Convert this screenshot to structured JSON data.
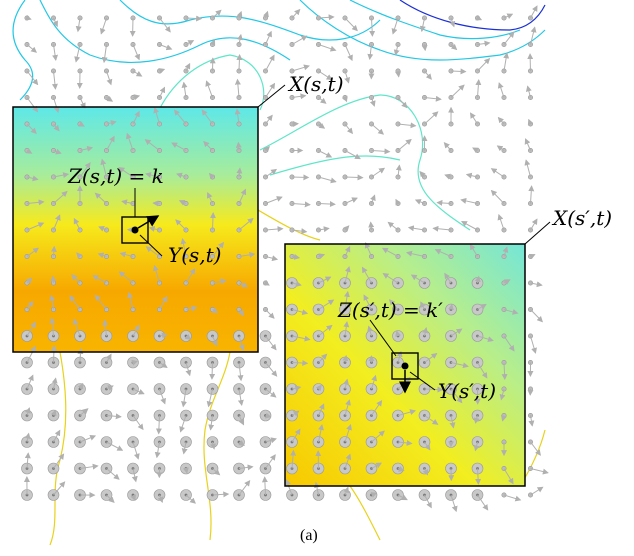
{
  "labels": {
    "x_st": "X(s,t)",
    "z_st": "Z(s,t) = k",
    "y_st": "Y(s,t)",
    "x_spt": "X(s′,t)",
    "z_spt": "Z(s′,t) = k′",
    "y_spt": "Y(s′,t)"
  },
  "caption": "(a)",
  "colors": {
    "contour_blue": "#1a2fd6",
    "contour_cyan": "#22c8e6",
    "contour_teal": "#5fe6c8",
    "contour_yellow": "#e8d21a",
    "arrow_gray": "#b0b0b0",
    "field_cyan": "#5ee8e8",
    "field_green": "#a8ec9a",
    "field_yellow": "#f6ea1c",
    "field_orange": "#f7a800"
  }
}
